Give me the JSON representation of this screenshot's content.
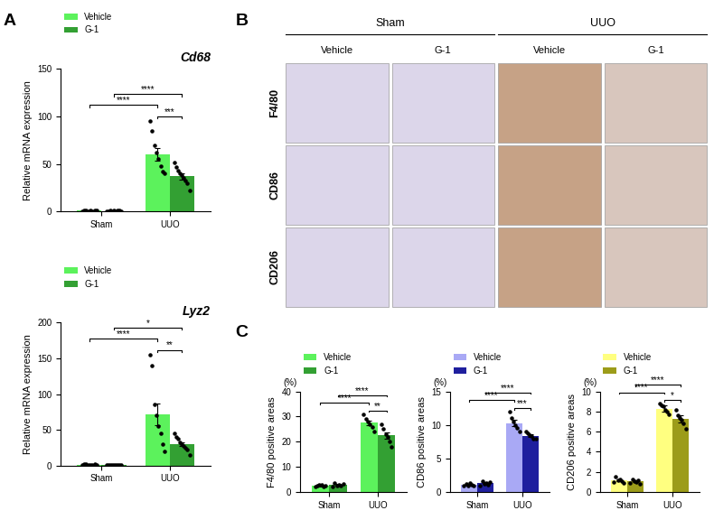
{
  "panel_labels": [
    "A",
    "B",
    "C"
  ],
  "chart_data": [
    {
      "type": "bar",
      "title": "Cd68",
      "ylabel": "Relative mRNA expression",
      "categories": [
        "Sham",
        "UUO"
      ],
      "series": [
        {
          "name": "Vehicle",
          "color": "#5cf25c",
          "values": [
            1.0,
            60
          ],
          "errors": [
            0.2,
            7
          ],
          "points": [
            [
              0.5,
              1.8,
              1.2,
              0.8,
              1.5,
              0.6,
              1.0,
              0.9
            ],
            [
              95,
              85,
              70,
              62,
              55,
              48,
              42,
              40
            ]
          ]
        },
        {
          "name": "G-1",
          "color": "#33a033",
          "values": [
            0.8,
            37
          ],
          "errors": [
            0.1,
            3
          ],
          "points": [
            [
              0.4,
              0.8,
              1.2,
              0.6,
              1.0,
              0.7,
              0.9,
              1.1,
              0.5
            ],
            [
              52,
              47,
              43,
              40,
              38,
              35,
              33,
              30,
              22
            ]
          ]
        }
      ],
      "ylim": [
        0,
        150
      ],
      "yticks": [
        0,
        50,
        100,
        150
      ],
      "legend": "upper left",
      "comparisons": [
        {
          "groups": [
            [
              0,
              0
            ],
            [
              1,
              0
            ]
          ],
          "label": "****"
        },
        {
          "groups": [
            [
              0,
              1
            ],
            [
              1,
              1
            ]
          ],
          "label": "****"
        },
        {
          "groups": [
            [
              1,
              0
            ],
            [
              1,
              1
            ]
          ],
          "label": "***"
        }
      ]
    },
    {
      "type": "bar",
      "title": "Lyz2",
      "ylabel": "Relative mRNA expression",
      "categories": [
        "Sham",
        "UUO"
      ],
      "series": [
        {
          "name": "Vehicle",
          "color": "#5cf25c",
          "values": [
            1.2,
            72
          ],
          "errors": [
            0.2,
            15
          ],
          "points": [
            [
              0.8,
              1.5,
              2.0,
              1.2,
              0.6,
              1.0,
              1.8,
              0.9
            ],
            [
              155,
              140,
              85,
              70,
              55,
              45,
              30,
              20
            ]
          ]
        },
        {
          "name": "G-1",
          "color": "#33a033",
          "values": [
            0.8,
            30
          ],
          "errors": [
            0.1,
            3
          ],
          "points": [
            [
              0.5,
              0.9,
              1.1,
              0.7,
              0.8,
              0.6,
              1.0,
              0.4,
              0.9
            ],
            [
              45,
              40,
              38,
              32,
              30,
              28,
              25,
              22,
              15
            ]
          ]
        }
      ],
      "ylim": [
        0,
        200
      ],
      "yticks": [
        0,
        50,
        100,
        150,
        200
      ],
      "legend": "upper left",
      "comparisons": [
        {
          "groups": [
            [
              0,
              0
            ],
            [
              1,
              0
            ]
          ],
          "label": "****"
        },
        {
          "groups": [
            [
              0,
              1
            ],
            [
              1,
              1
            ]
          ],
          "label": "*"
        },
        {
          "groups": [
            [
              1,
              0
            ],
            [
              1,
              1
            ]
          ],
          "label": "**"
        }
      ]
    },
    {
      "type": "bar",
      "ylabel": "F4/80 positive areas",
      "ylabel_unit": "(%)",
      "categories": [
        "Sham",
        "UUO"
      ],
      "series": [
        {
          "name": "Vehicle",
          "color": "#5cf25c",
          "values": [
            2.5,
            27.5
          ],
          "errors": [
            0.3,
            1.0
          ],
          "points": [
            [
              2.0,
              2.5,
              3.0,
              2.7,
              2.3,
              2.6
            ],
            [
              31,
              29,
              28,
              27,
              26,
              24
            ]
          ]
        },
        {
          "name": "G-1",
          "color": "#33a033",
          "values": [
            2.8,
            22.5
          ],
          "errors": [
            0.4,
            1.3
          ],
          "points": [
            [
              2.2,
              3.5,
              2.6,
              3.0,
              2.4,
              3.1
            ],
            [
              27,
              25,
              23,
              22,
              20,
              18
            ]
          ]
        }
      ],
      "ylim": [
        0,
        40
      ],
      "yticks": [
        0,
        10,
        20,
        30,
        40
      ],
      "legend": "upper left",
      "comparisons": [
        {
          "groups": [
            [
              0,
              0
            ],
            [
              1,
              0
            ]
          ],
          "label": "****"
        },
        {
          "groups": [
            [
              0,
              1
            ],
            [
              1,
              1
            ]
          ],
          "label": "****"
        },
        {
          "groups": [
            [
              1,
              0
            ],
            [
              1,
              1
            ]
          ],
          "label": "**"
        }
      ]
    },
    {
      "type": "bar",
      "ylabel": "CD86 positive areas",
      "ylabel_unit": "(%)",
      "categories": [
        "Sham",
        "UUO"
      ],
      "series": [
        {
          "name": "Vehicle",
          "color": "#a9a9f5",
          "values": [
            1.1,
            10.3
          ],
          "errors": [
            0.1,
            0.45
          ],
          "points": [
            [
              0.9,
              1.2,
              1.0,
              1.3,
              1.1,
              0.9
            ],
            [
              12,
              11,
              10.5,
              10,
              9.5,
              9
            ]
          ]
        },
        {
          "name": "G-1",
          "color": "#1f1f9e",
          "values": [
            1.3,
            8.4
          ],
          "errors": [
            0.15,
            0.2
          ],
          "points": [
            [
              1.0,
              1.6,
              1.2,
              1.4,
              1.1,
              1.5
            ],
            [
              9,
              8.7,
              8.5,
              8.3,
              8,
              8
            ]
          ]
        }
      ],
      "ylim": [
        0,
        15
      ],
      "yticks": [
        0,
        5,
        10,
        15
      ],
      "legend": "upper left",
      "comparisons": [
        {
          "groups": [
            [
              0,
              0
            ],
            [
              1,
              0
            ]
          ],
          "label": "****"
        },
        {
          "groups": [
            [
              0,
              1
            ],
            [
              1,
              1
            ]
          ],
          "label": "****"
        },
        {
          "groups": [
            [
              1,
              0
            ],
            [
              1,
              1
            ]
          ],
          "label": "***"
        }
      ]
    },
    {
      "type": "bar",
      "ylabel": "CD206 positive areas",
      "ylabel_unit": "(%)",
      "categories": [
        "Sham",
        "UUO"
      ],
      "series": [
        {
          "name": "Vehicle",
          "color": "#ffff80",
          "values": [
            1.2,
            8.3
          ],
          "errors": [
            0.1,
            0.3
          ],
          "points": [
            [
              1.0,
              1.5,
              1.2,
              1.3,
              1.1,
              0.9
            ],
            [
              8.8,
              8.6,
              8.5,
              8.2,
              8.0,
              7.7
            ]
          ]
        },
        {
          "name": "G-1",
          "color": "#9c9c1a",
          "values": [
            1.1,
            7.3
          ],
          "errors": [
            0.1,
            0.35
          ],
          "points": [
            [
              0.9,
              1.3,
              1.1,
              1.0,
              1.2,
              0.8
            ],
            [
              8.2,
              7.6,
              7.4,
              7.2,
              6.8,
              6.3
            ]
          ]
        }
      ],
      "ylim": [
        0,
        10
      ],
      "yticks": [
        0,
        2,
        4,
        6,
        8,
        10
      ],
      "legend": "upper left",
      "comparisons": [
        {
          "groups": [
            [
              0,
              0
            ],
            [
              1,
              0
            ]
          ],
          "label": "****"
        },
        {
          "groups": [
            [
              0,
              1
            ],
            [
              1,
              1
            ]
          ],
          "label": "****"
        },
        {
          "groups": [
            [
              1,
              0
            ],
            [
              1,
              1
            ]
          ],
          "label": "*"
        }
      ]
    }
  ],
  "image_grid": {
    "groups": [
      {
        "label": "Sham",
        "columns": [
          "Vehicle",
          "G-1"
        ]
      },
      {
        "label": "UUO",
        "columns": [
          "Vehicle",
          "G-1"
        ]
      }
    ],
    "rows": [
      "F4/80",
      "CD86",
      "CD206"
    ]
  }
}
